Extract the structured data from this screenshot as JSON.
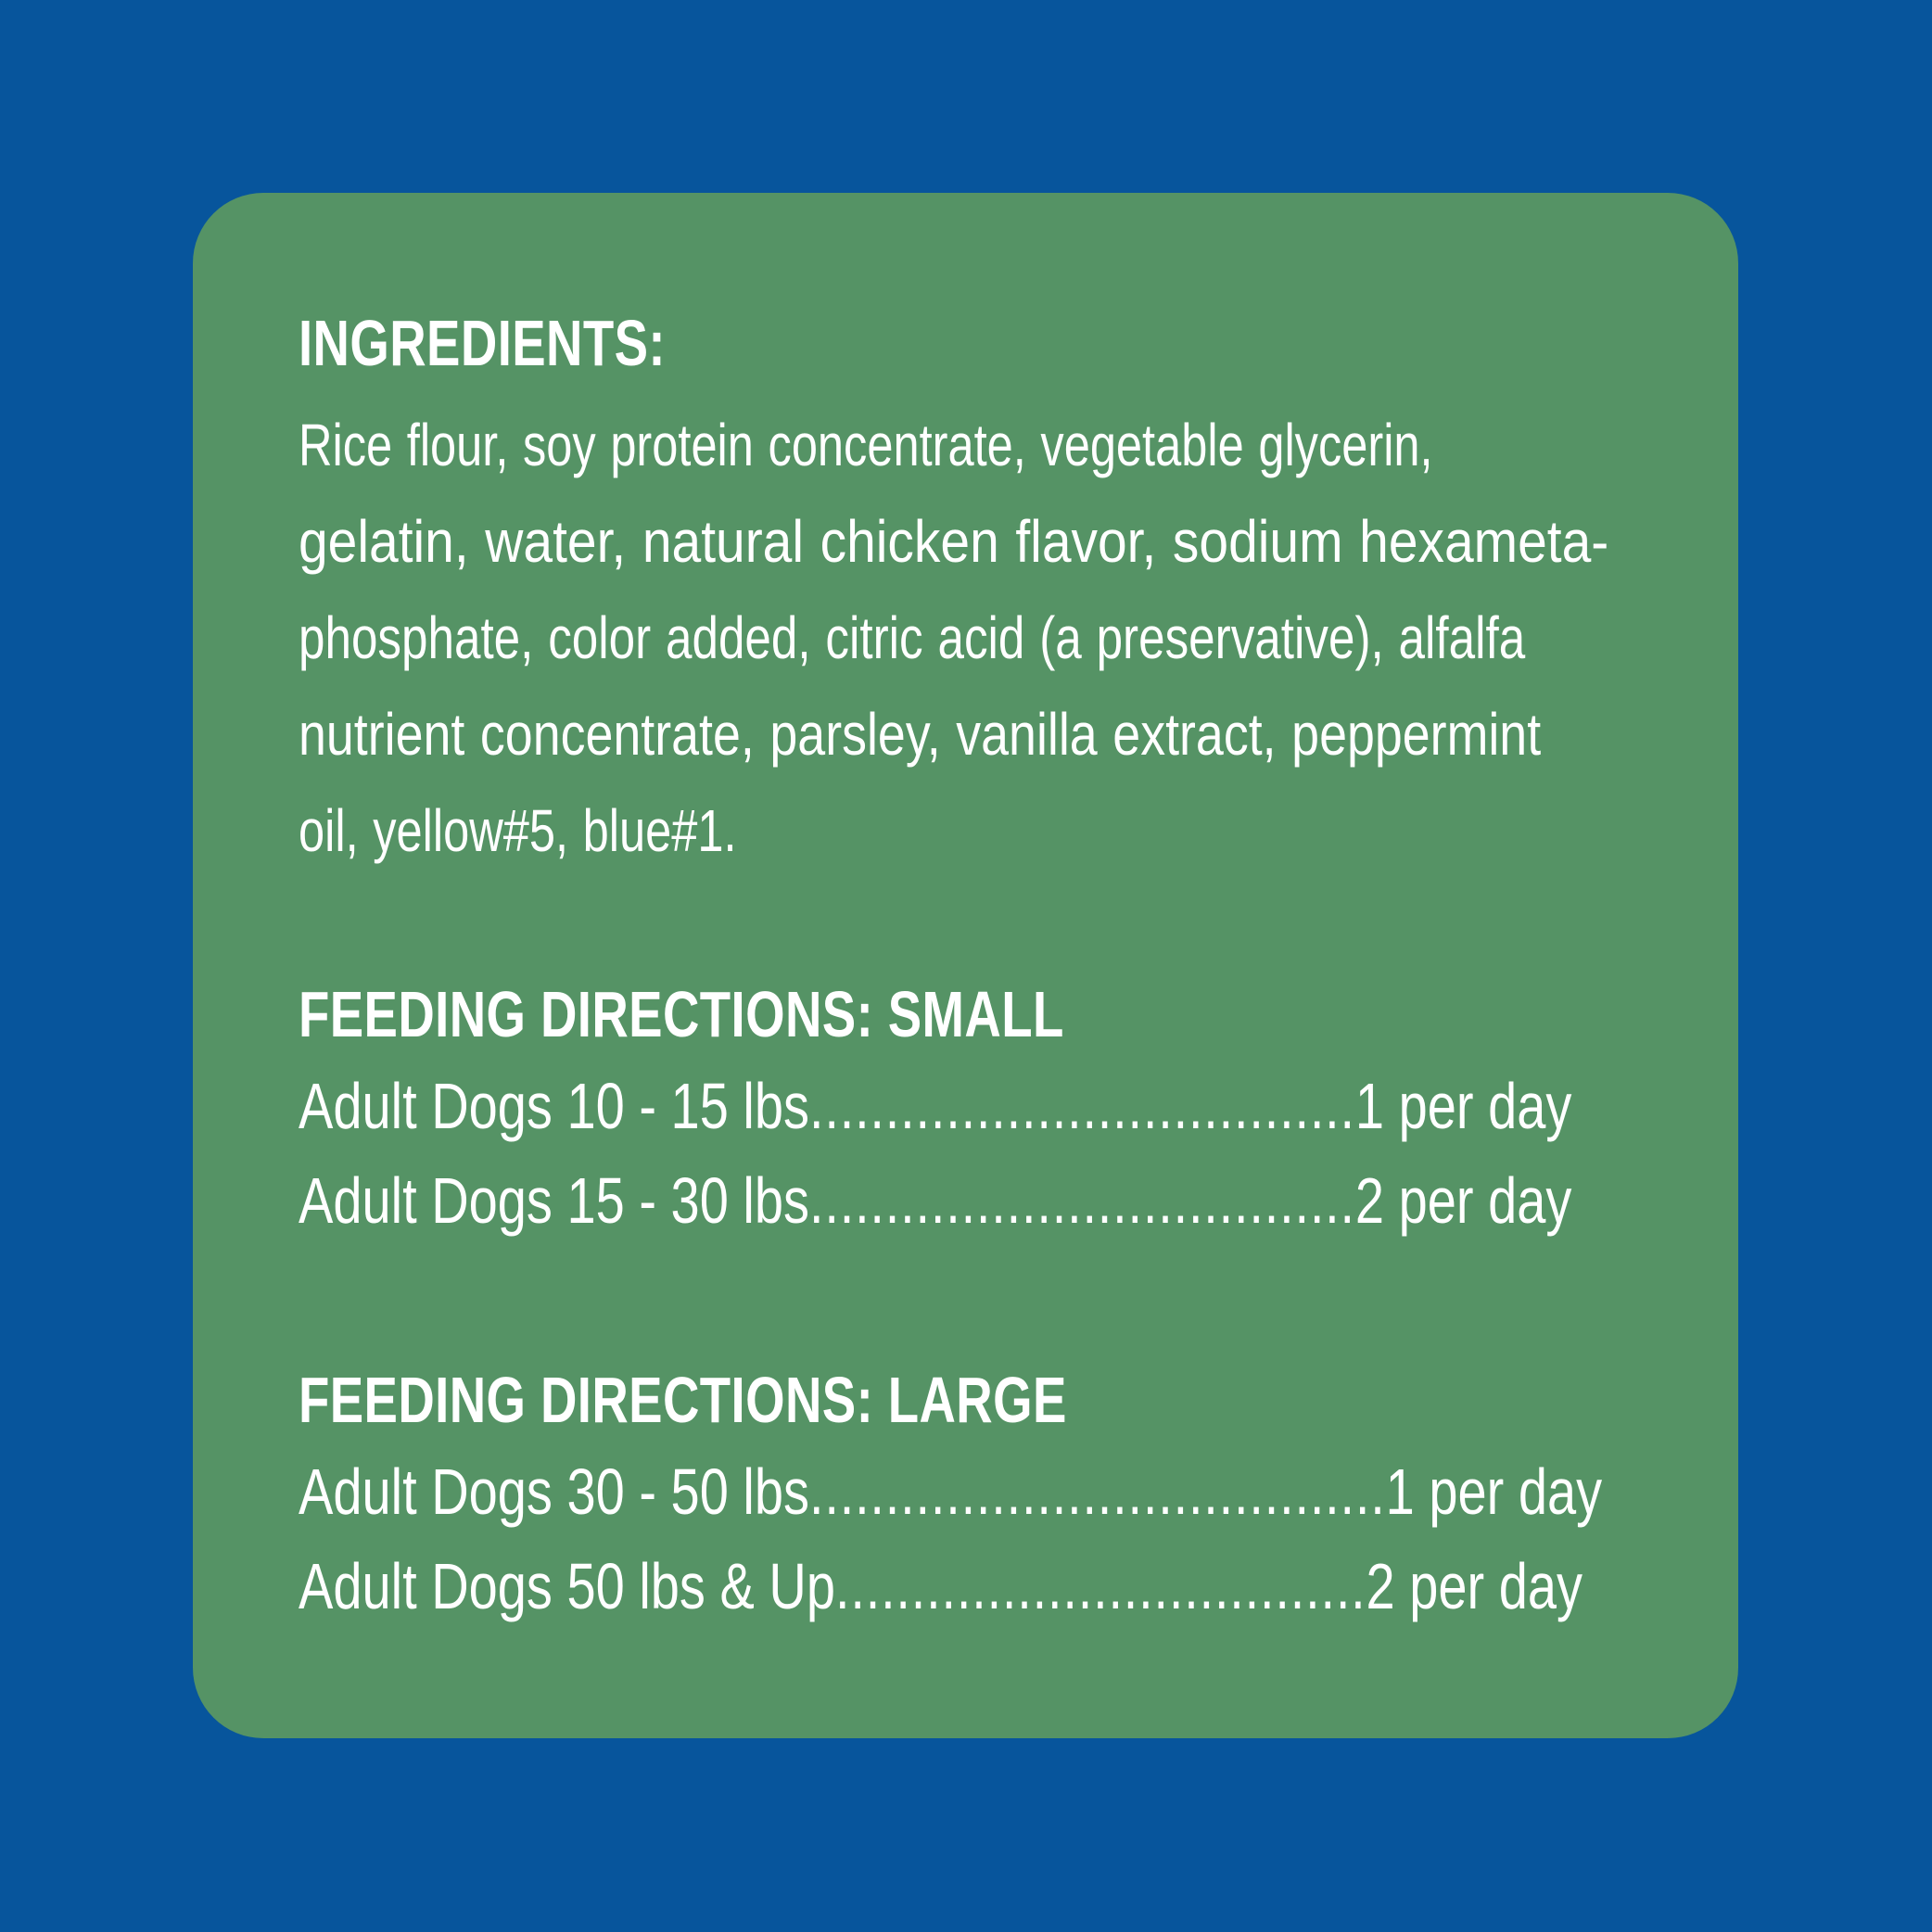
{
  "colors": {
    "background": "#07559c",
    "panel": "#559365",
    "text": "#ffffff"
  },
  "ingredients": {
    "heading": "INGREDIENTS:",
    "lines": [
      "Rice flour, soy protein concentrate, vegetable glycerin,",
      "gelatin, water, natural chicken flavor, sodium hexameta-",
      "phosphate, color added, citric acid (a preservative), alfalfa",
      "nutrient concentrate, parsley, vanilla extract, peppermint",
      "oil, yellow#5, blue#1."
    ]
  },
  "feeding_small": {
    "heading": "FEEDING DIRECTIONS: SMALL",
    "rows": [
      {
        "label": "Adult Dogs 10 - 15 lbs",
        "dots": "....................................",
        "amount": "1 per day"
      },
      {
        "label": "Adult Dogs 15 - 30 lbs",
        "dots": "....................................",
        "amount": "2 per day"
      }
    ]
  },
  "feeding_large": {
    "heading": "FEEDING DIRECTIONS: LARGE",
    "rows": [
      {
        "label": "Adult Dogs 30 - 50 lbs",
        "dots": "......................................",
        "amount": "1 per day"
      },
      {
        "label": "Adult Dogs 50 lbs & Up",
        "dots": "...................................",
        "amount": "2 per day"
      }
    ]
  }
}
